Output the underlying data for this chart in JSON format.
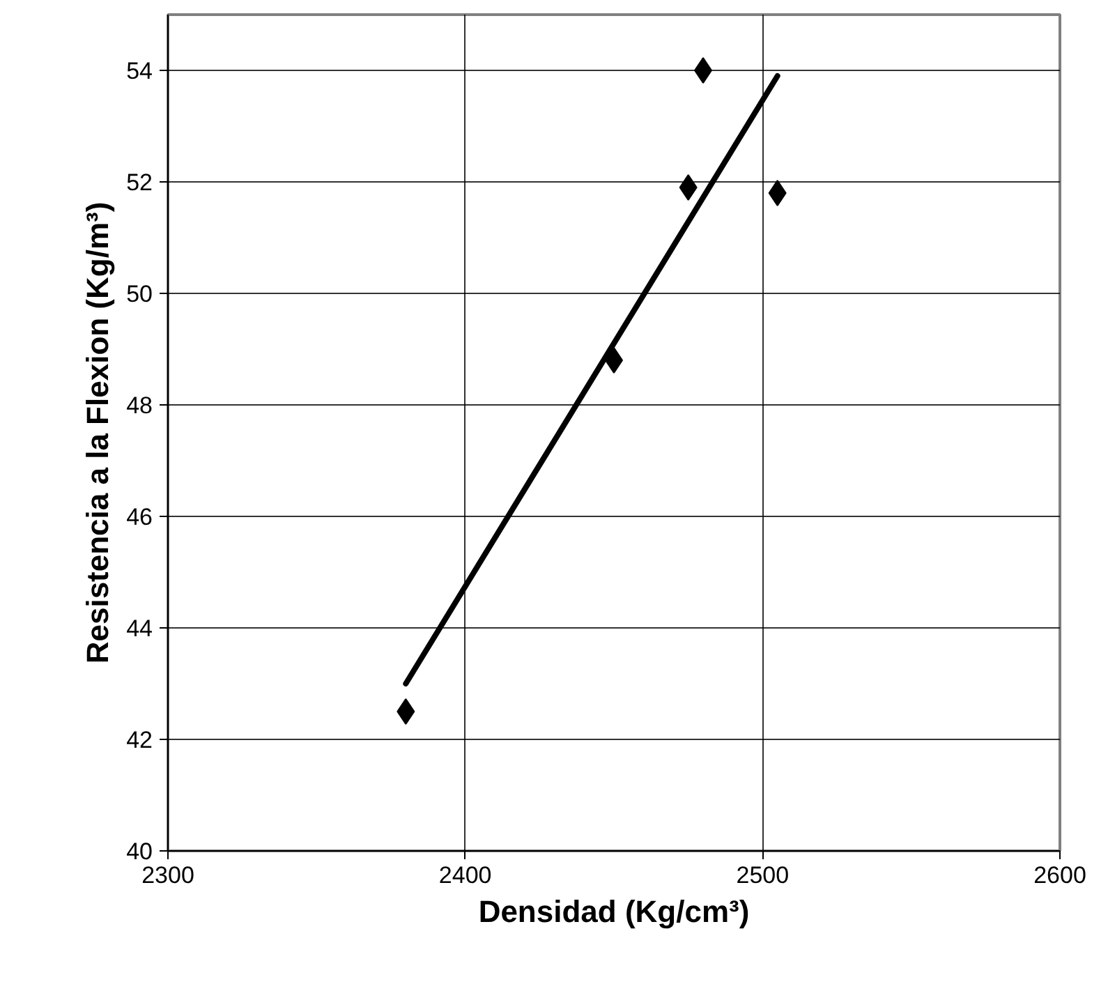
{
  "chart_data": {
    "type": "scatter",
    "xlabel": "Densidad (Kg/cm³)",
    "ylabel": "Resistencia a la Flexion (Kg/m³)",
    "xlim": [
      2300,
      2600
    ],
    "xticks": [
      2300,
      2400,
      2500,
      2600
    ],
    "ylim": [
      40,
      55
    ],
    "yticks": [
      40,
      42,
      44,
      46,
      48,
      50,
      52,
      54
    ],
    "grid": true,
    "marker": "diamond",
    "series": [
      {
        "color": "#000000",
        "x": [
          2380,
          2450,
          2475,
          2480,
          2505
        ],
        "values": [
          42.5,
          48.8,
          51.9,
          54.0,
          51.8
        ]
      },
      {
        "type": "line",
        "color": "#000000",
        "marker": "none",
        "line_style": "solid",
        "x": [
          2380,
          2505
        ],
        "values": [
          43.0,
          53.9
        ]
      }
    ]
  }
}
